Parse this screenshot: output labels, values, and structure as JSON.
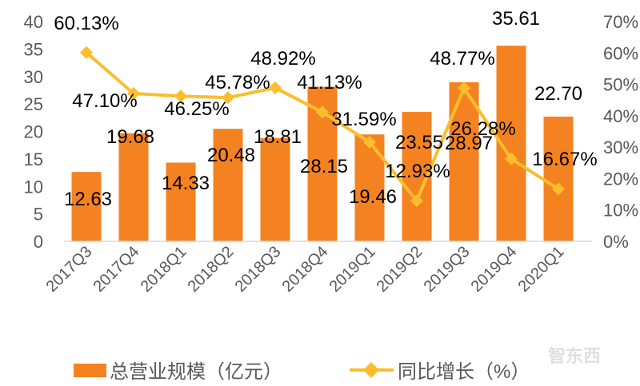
{
  "chart_data": {
    "type": "bar+line",
    "categories": [
      "2017Q3",
      "2017Q4",
      "2018Q1",
      "2018Q2",
      "2018Q3",
      "2018Q4",
      "2019Q1",
      "2019Q2",
      "2019Q3",
      "2019Q4",
      "2020Q1"
    ],
    "series": [
      {
        "name": "总营业规模（亿元）",
        "type": "bar",
        "axis": "left",
        "color": "#f58220",
        "values": [
          12.63,
          19.68,
          14.33,
          20.48,
          18.81,
          28.15,
          19.46,
          23.55,
          28.97,
          35.61,
          22.7
        ],
        "labels": [
          "12.63",
          "19.68",
          "14.33",
          "20.48",
          "18.81",
          "28.15",
          "19.46",
          "23.55",
          "28.97",
          "35.61",
          "22.70"
        ]
      },
      {
        "name": "同比增长（%）",
        "type": "line",
        "axis": "right",
        "color": "#fbbd2c",
        "marker": "diamond",
        "values": [
          60.13,
          47.1,
          46.25,
          45.78,
          48.92,
          41.13,
          31.59,
          12.93,
          48.77,
          26.28,
          16.67
        ],
        "labels": [
          "60.13%",
          "47.10%",
          "46.25%",
          "45.78%",
          "48.92%",
          "41.13%",
          "31.59%",
          "12.93%",
          "48.77%",
          "26.28%",
          "16.67%"
        ]
      }
    ],
    "y_left": {
      "range": [
        0,
        40
      ],
      "ticks": [
        "0",
        "5",
        "10",
        "15",
        "20",
        "25",
        "30",
        "35",
        "40"
      ]
    },
    "y_right": {
      "range": [
        0,
        70
      ],
      "ticks": [
        "0%",
        "10%",
        "20%",
        "30%",
        "40%",
        "50%",
        "60%",
        "70%"
      ]
    },
    "grid": false,
    "legend_placement": "bottom"
  },
  "watermark": "智东西"
}
